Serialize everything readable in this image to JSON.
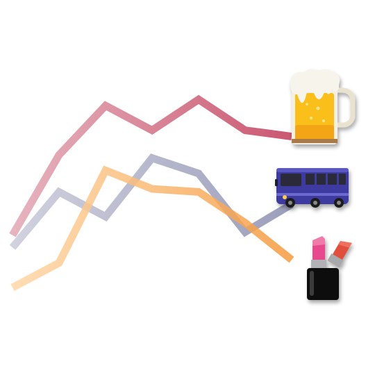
{
  "chart_data": {
    "type": "line",
    "title": "",
    "xlabel": "",
    "ylabel": "",
    "axes_visible": false,
    "grid": false,
    "legend": "none",
    "x": [
      0,
      1,
      2,
      3,
      4,
      5,
      6
    ],
    "ylim": [
      0,
      100
    ],
    "series": [
      {
        "icon": "beer-mug-icon",
        "color_start": "#e2a7b4",
        "color_end": "#c13a58",
        "values": [
          35,
          61,
          77,
          69,
          79,
          69,
          67
        ]
      },
      {
        "icon": "bus-icon",
        "color_start": "#c9cad9",
        "color_end": "#8a8daf",
        "values": [
          31,
          49,
          41,
          60,
          55,
          36,
          45
        ]
      },
      {
        "icon": "lipstick-icon",
        "color_start": "#ffd7a8",
        "color_end": "#f59a3d",
        "values": [
          18,
          26,
          56,
          50,
          49,
          39,
          27
        ]
      }
    ]
  }
}
